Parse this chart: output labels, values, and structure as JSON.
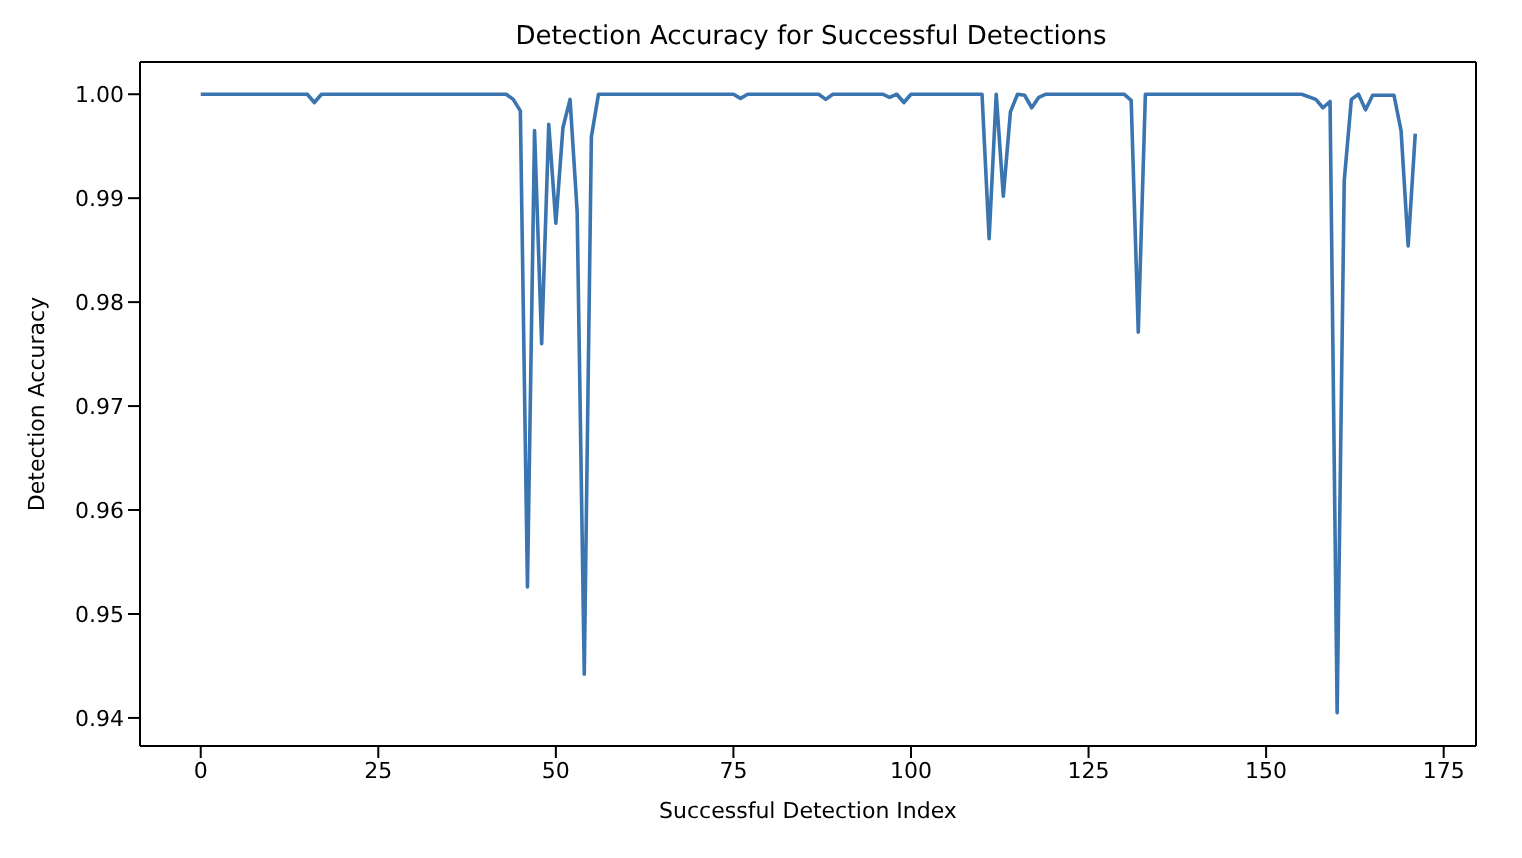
{
  "chart_data": {
    "type": "line",
    "title": "Detection Accuracy for Successful Detections",
    "xlabel": "Successful Detection Index",
    "ylabel": "Detection Accuracy",
    "x": [
      0,
      15,
      16,
      17,
      43,
      44,
      45,
      46,
      47,
      48,
      49,
      50,
      51,
      52,
      53,
      54,
      55,
      56,
      75,
      76,
      77,
      87,
      88,
      89,
      96,
      97,
      98,
      99,
      100,
      110,
      111,
      112,
      113,
      114,
      115,
      116,
      117,
      118,
      119,
      130,
      131,
      132,
      133,
      155,
      157,
      158,
      159,
      160,
      161,
      162,
      163,
      164,
      165,
      168,
      169,
      170,
      171
    ],
    "series": [
      {
        "color": "#3a75af",
        "values": [
          1.0,
          1.0,
          0.9992,
          1.0,
          1.0,
          0.9995,
          0.9984,
          0.9526,
          0.9965,
          0.976,
          0.9971,
          0.9876,
          0.9968,
          0.9995,
          0.9887,
          0.9442,
          0.9959,
          1.0,
          1.0,
          0.9996,
          1.0,
          1.0,
          0.9995,
          1.0,
          1.0,
          0.9997,
          1.0,
          0.9992,
          1.0,
          1.0,
          0.9861,
          1.0,
          0.9902,
          0.9983,
          1.0,
          0.9999,
          0.9987,
          0.9997,
          1.0,
          1.0,
          0.9994,
          0.9771,
          1.0,
          1.0,
          0.9995,
          0.9987,
          0.9993,
          0.9405,
          0.9917,
          0.9995,
          1.0,
          0.9985,
          0.9999,
          0.9999,
          0.9965,
          0.9854,
          0.9962
        ]
      }
    ],
    "xlim": [
      -8.55,
      179.55
    ],
    "xticks": [
      0,
      25,
      50,
      75,
      100,
      125,
      150,
      175
    ],
    "ylim": [
      0.9373,
      1.0031
    ],
    "yticks": [
      {
        "value": 0.94,
        "label": "0.94"
      },
      {
        "value": 0.95,
        "label": "0.95"
      },
      {
        "value": 0.96,
        "label": "0.96"
      },
      {
        "value": 0.97,
        "label": "0.97"
      },
      {
        "value": 0.98,
        "label": "0.98"
      },
      {
        "value": 0.99,
        "label": "0.99"
      },
      {
        "value": 1.0,
        "label": "1.00"
      }
    ],
    "grid": false,
    "marker": "none",
    "line_style": "solid"
  }
}
